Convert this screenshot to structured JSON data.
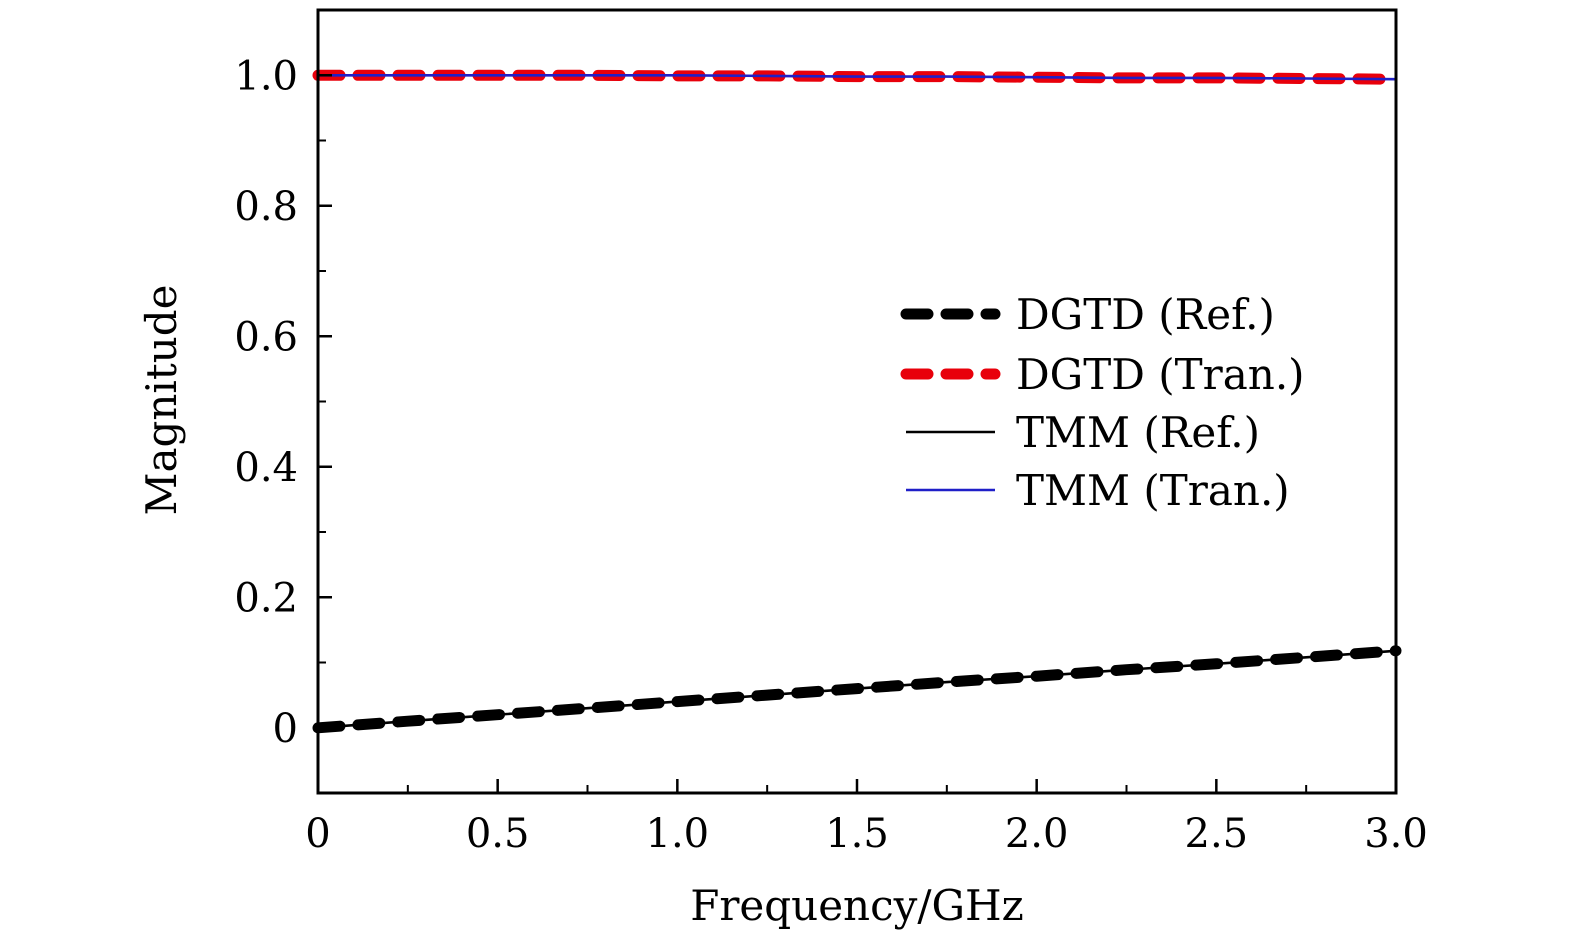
{
  "chart_data": {
    "type": "line",
    "title": "",
    "xlabel": "Frequency/GHz",
    "ylabel": "Magnitude",
    "xlim": [
      0,
      3.0
    ],
    "ylim": [
      -0.1,
      1.1
    ],
    "xticks": [
      0,
      0.5,
      1.0,
      1.5,
      2.0,
      2.5,
      3.0
    ],
    "xtick_labels": [
      "0",
      "0.5",
      "1.0",
      "1.5",
      "2.0",
      "2.5",
      "3.0"
    ],
    "yticks": [
      0,
      0.2,
      0.4,
      0.6,
      0.8,
      1.0
    ],
    "ytick_labels": [
      "0",
      "0.2",
      "0.4",
      "0.6",
      "0.8",
      "1.0"
    ],
    "grid": false,
    "legend_position": "center-right",
    "x": [
      0,
      0.25,
      0.5,
      0.75,
      1.0,
      1.25,
      1.5,
      1.75,
      2.0,
      2.25,
      2.5,
      2.75,
      3.0
    ],
    "series": [
      {
        "name": "DGTD (Ref.)",
        "style": "dashed-thick",
        "color": "#000000",
        "values": [
          0.0,
          0.01,
          0.02,
          0.03,
          0.04,
          0.05,
          0.06,
          0.07,
          0.079,
          0.089,
          0.098,
          0.108,
          0.118
        ]
      },
      {
        "name": "DGTD (Tran.)",
        "style": "dashed-thick",
        "color": "#e8000b",
        "values": [
          1.0,
          1.0,
          1.0,
          1.0,
          0.999,
          0.999,
          0.998,
          0.998,
          0.997,
          0.996,
          0.996,
          0.995,
          0.994
        ]
      },
      {
        "name": "TMM (Ref.)",
        "style": "solid-thin",
        "color": "#000000",
        "values": [
          0.0,
          0.01,
          0.02,
          0.03,
          0.04,
          0.05,
          0.06,
          0.07,
          0.079,
          0.089,
          0.098,
          0.108,
          0.118
        ]
      },
      {
        "name": "TMM (Tran.)",
        "style": "solid-thin",
        "color": "#1f1fc8",
        "values": [
          1.0,
          1.0,
          1.0,
          1.0,
          1.0,
          0.999,
          0.998,
          0.998,
          0.997,
          0.996,
          0.996,
          0.995,
          0.994
        ]
      }
    ]
  }
}
